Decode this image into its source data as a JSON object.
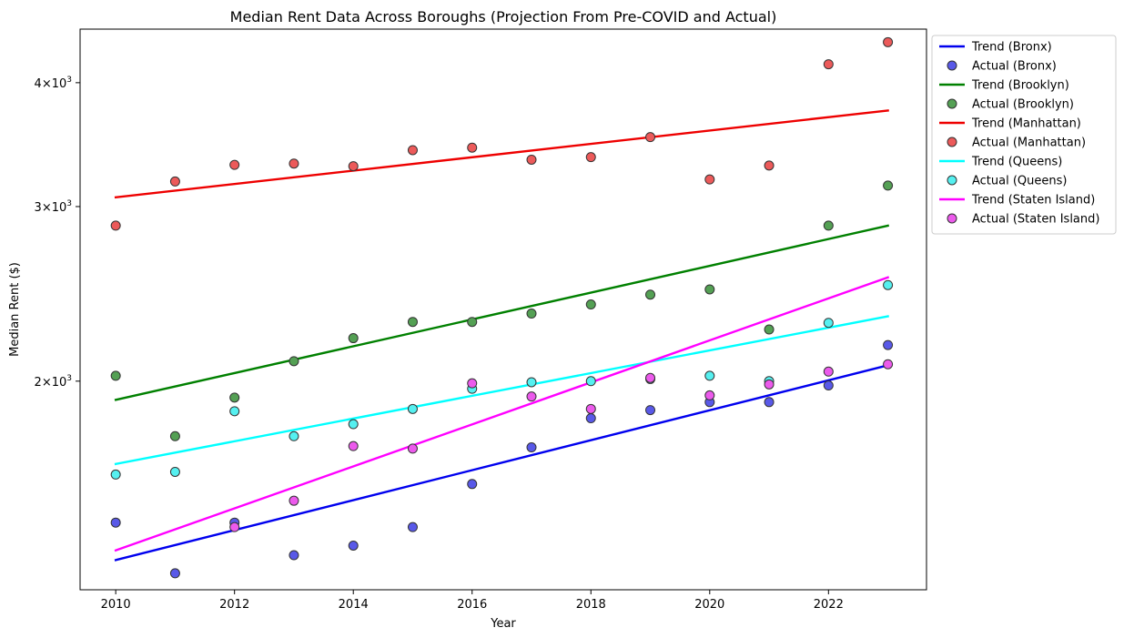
{
  "chart_data": {
    "type": "scatter",
    "title": "Median Rent Data Across Boroughs (Projection From Pre-COVID and Actual)",
    "xlabel": "Year",
    "ylabel": "Median Rent ($)",
    "xlim": [
      2009.4,
      2023.65
    ],
    "ylim": [
      1232,
      4530
    ],
    "yscale": "log",
    "x_ticks": [
      2010,
      2012,
      2014,
      2016,
      2018,
      2020,
      2022
    ],
    "y_ticks": [
      {
        "value": 2000,
        "base": "2",
        "label": "×10",
        "exp": "3"
      },
      {
        "value": 3000,
        "base": "3",
        "label": "×10",
        "exp": "3"
      },
      {
        "value": 4000,
        "base": "4",
        "label": "×10",
        "exp": "3"
      }
    ],
    "grid": false,
    "legend_position": "outside-top-right",
    "x": [
      2010,
      2011,
      2012,
      2013,
      2014,
      2015,
      2016,
      2017,
      2018,
      2019,
      2020,
      2021,
      2022,
      2023
    ],
    "series": [
      {
        "name": "Bronx",
        "trend_label": "Trend (Bronx)",
        "actual_label": "Actual (Bronx)",
        "color": "#0000ee",
        "marker_color": "#5959e8",
        "trend": [
          1320,
          2075
        ],
        "values": [
          1440,
          1280,
          1440,
          1335,
          1365,
          1425,
          1575,
          1715,
          1835,
          1870,
          1905,
          1905,
          1980,
          2175
        ]
      },
      {
        "name": "Brooklyn",
        "trend_label": "Trend (Brooklyn)",
        "actual_label": "Actual (Brooklyn)",
        "color": "#008000",
        "marker_color": "#54a054",
        "trend": [
          1915,
          2870
        ],
        "values": [
          2025,
          1760,
          1925,
          2095,
          2210,
          2295,
          2295,
          2340,
          2390,
          2445,
          2475,
          2255,
          2870,
          3150
        ]
      },
      {
        "name": "Manhattan",
        "trend_label": "Trend (Manhattan)",
        "actual_label": "Actual (Manhattan)",
        "color": "#ee0000",
        "marker_color": "#ec5a5a",
        "trend": [
          3065,
          3750
        ],
        "values": [
          2870,
          3180,
          3305,
          3315,
          3295,
          3420,
          3440,
          3345,
          3365,
          3525,
          3195,
          3300,
          4175,
          4395
        ]
      },
      {
        "name": "Queens",
        "trend_label": "Trend (Queens)",
        "actual_label": "Actual (Queens)",
        "color": "#00ffff",
        "marker_color": "#55f0f0",
        "trend": [
          1650,
          2325
        ],
        "values": [
          1610,
          1620,
          1865,
          1760,
          1810,
          1875,
          1965,
          1995,
          2000,
          2010,
          2025,
          2000,
          2290,
          2500
        ]
      },
      {
        "name": "Staten Island",
        "trend_label": "Trend (Staten Island)",
        "actual_label": "Actual (Staten Island)",
        "color": "#ff00ff",
        "marker_color": "#ec5aec",
        "trend": [
          1350,
          2545
        ],
        "values": [
          null,
          null,
          1425,
          1515,
          1720,
          1710,
          1990,
          1930,
          1875,
          2015,
          1935,
          1985,
          2045,
          2080
        ]
      }
    ]
  }
}
